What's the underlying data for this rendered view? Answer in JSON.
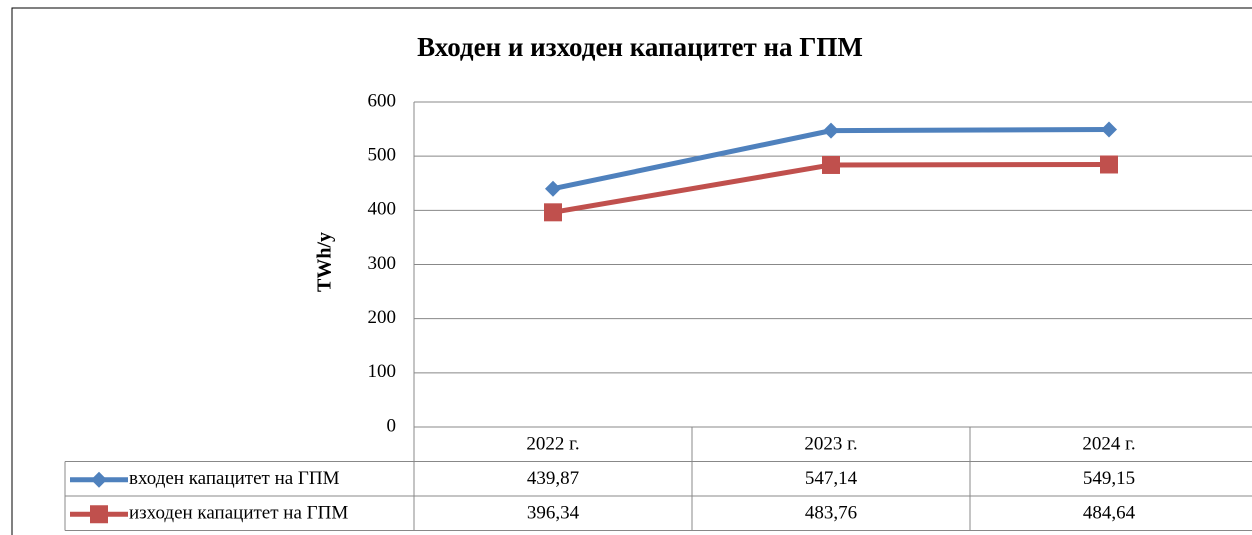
{
  "chart_data": {
    "type": "line",
    "title": "Входен и изходен капацитет на ГПМ",
    "y_label": "TWh/y",
    "categories": [
      "2022 г.",
      "2023 г.",
      "2024 г."
    ],
    "series": [
      {
        "name": "входен капацитет на ГПМ",
        "color": "#4f81bd",
        "marker": "diamond",
        "values": [
          439.87,
          547.14,
          549.15
        ],
        "value_labels": [
          "439,87",
          "547,14",
          "549,15"
        ]
      },
      {
        "name": "изходен капацитет на ГПМ",
        "color": "#c0504d",
        "marker": "square",
        "values": [
          396.34,
          483.76,
          484.64
        ],
        "value_labels": [
          "396,34",
          "483,76",
          "484,64"
        ]
      }
    ],
    "ylim": [
      0,
      600
    ],
    "yticks": [
      0,
      100,
      200,
      300,
      400,
      500,
      600
    ],
    "grid": true
  }
}
